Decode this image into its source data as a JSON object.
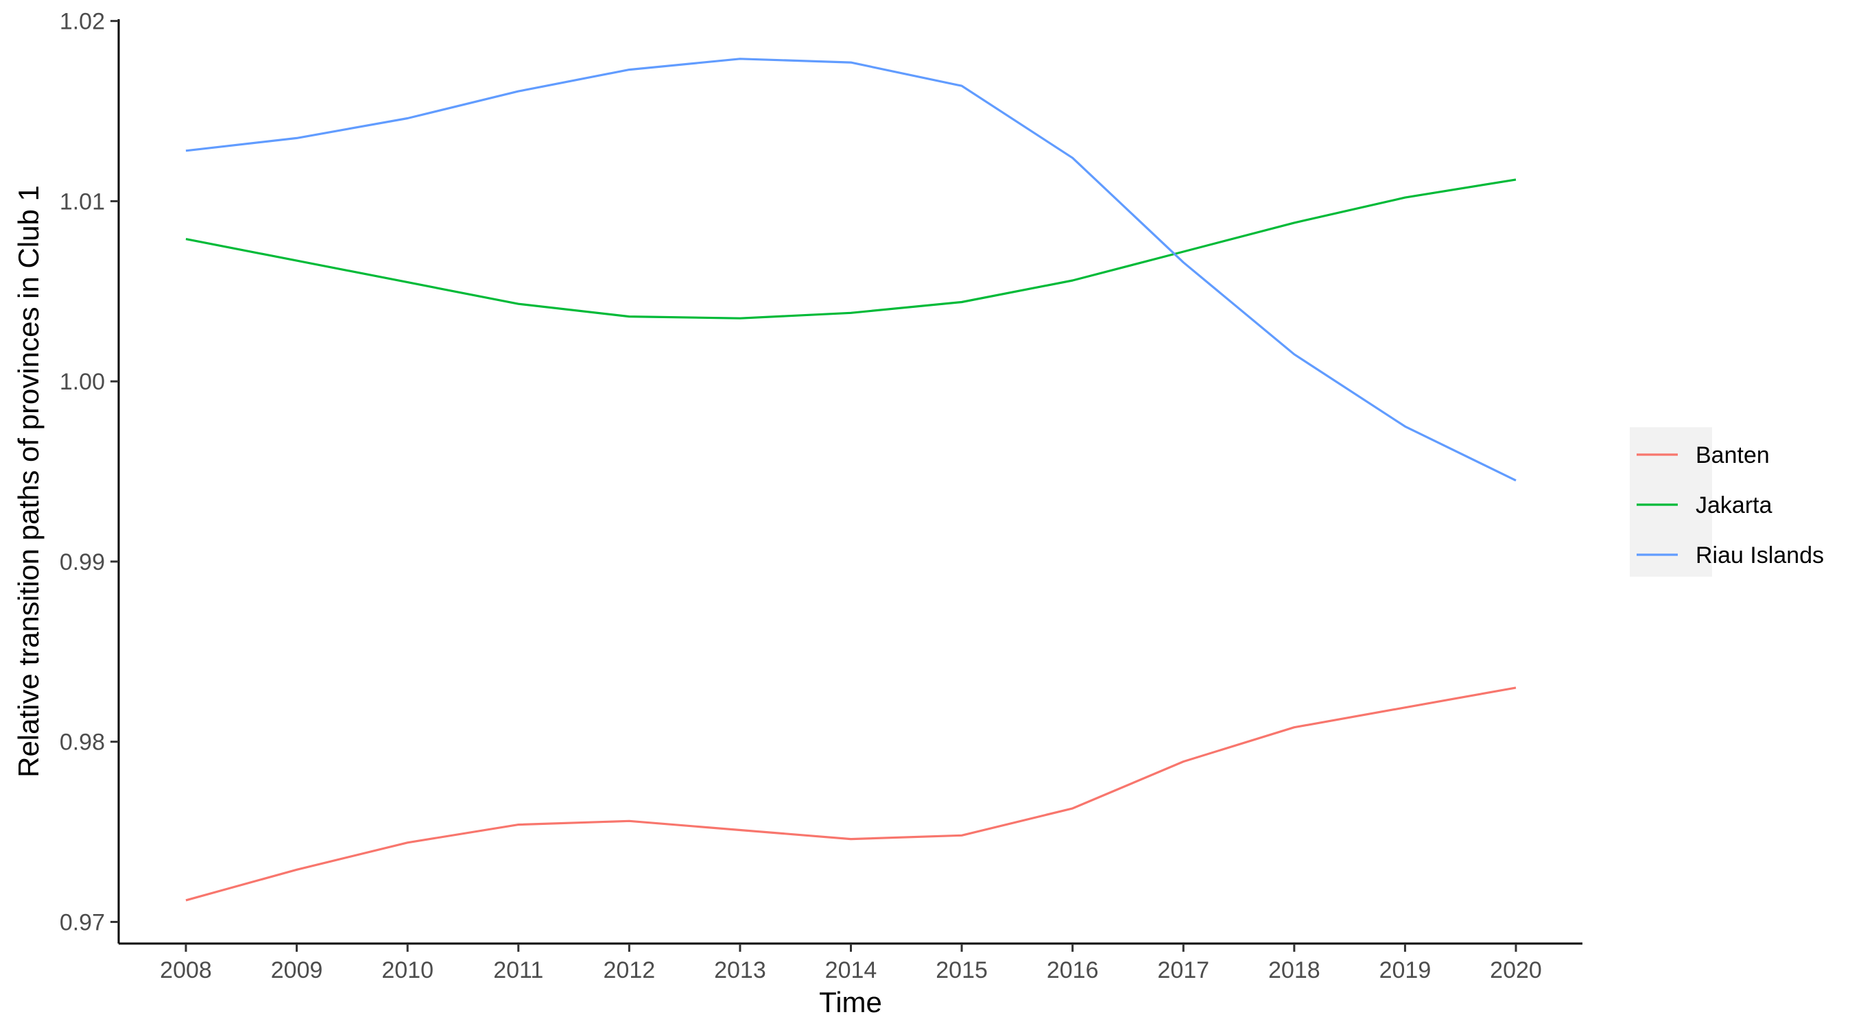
{
  "chart_data": {
    "type": "line",
    "title": "",
    "xlabel": "Time",
    "ylabel": "Relative transition paths of provinces in Club 1",
    "x": [
      2008,
      2009,
      2010,
      2011,
      2012,
      2013,
      2014,
      2015,
      2016,
      2017,
      2018,
      2019,
      2020
    ],
    "x_tick_labels": [
      "2008",
      "2009",
      "2010",
      "2011",
      "2012",
      "2013",
      "2014",
      "2015",
      "2016",
      "2017",
      "2018",
      "2019",
      "2020"
    ],
    "ylim": [
      0.9688,
      1.0201
    ],
    "y_ticks": [
      0.97,
      0.98,
      0.99,
      1.0,
      1.01,
      1.02
    ],
    "y_tick_labels": [
      "0.97",
      "0.98",
      "0.99",
      "1.00",
      "1.01",
      "1.02"
    ],
    "grid": false,
    "legend_position": "right",
    "series": [
      {
        "name": "Banten",
        "color": "#F8766D",
        "values": [
          0.9712,
          0.9729,
          0.9744,
          0.9754,
          0.9756,
          0.9751,
          0.9746,
          0.9748,
          0.9763,
          0.9789,
          0.9808,
          0.9819,
          0.983
        ]
      },
      {
        "name": "Jakarta",
        "color": "#00BA38",
        "values": [
          1.0079,
          1.0067,
          1.0055,
          1.0043,
          1.0036,
          1.0035,
          1.0038,
          1.0044,
          1.0056,
          1.0072,
          1.0088,
          1.0102,
          1.0112
        ]
      },
      {
        "name": "Riau Islands",
        "color": "#619CFF",
        "values": [
          1.0128,
          1.0135,
          1.0146,
          1.0161,
          1.0173,
          1.0179,
          1.0177,
          1.0164,
          1.0124,
          1.0066,
          1.0015,
          0.9975,
          0.9945
        ]
      }
    ]
  }
}
